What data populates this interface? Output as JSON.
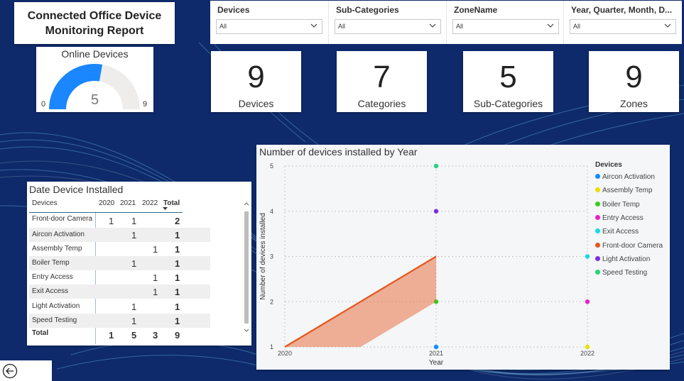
{
  "report": {
    "title": "Connected Office Device\nMonitoring Report"
  },
  "gauge": {
    "title": "Online Devices",
    "min": "0",
    "max": "9",
    "value": "5",
    "value_num": 5,
    "max_num": 9,
    "fill_color": "#1a86ff",
    "track_color": "#efedeb"
  },
  "filters": [
    {
      "label": "Devices",
      "value": "All"
    },
    {
      "label": "Sub-Categories",
      "value": "All"
    },
    {
      "label": "ZoneName",
      "value": "All"
    },
    {
      "label": "Year, Quarter, Month, D...",
      "value": "All"
    }
  ],
  "kpis": [
    {
      "value": "9",
      "label": "Devices"
    },
    {
      "value": "7",
      "label": "Categories"
    },
    {
      "value": "5",
      "label": "Sub-Categories"
    },
    {
      "value": "9",
      "label": "Zones"
    }
  ],
  "table": {
    "title": "Date Device Installed",
    "headers": [
      "Devices",
      "2020",
      "2021",
      "2022",
      "Total"
    ],
    "rows": [
      {
        "device": "Front-door Camera",
        "y2020": "1",
        "y2021": "1",
        "y2022": "",
        "total": "2"
      },
      {
        "device": "Aircon Activation",
        "y2020": "",
        "y2021": "1",
        "y2022": "",
        "total": "1"
      },
      {
        "device": "Assembly Temp",
        "y2020": "",
        "y2021": "",
        "y2022": "1",
        "total": "1"
      },
      {
        "device": "Boiler Temp",
        "y2020": "",
        "y2021": "1",
        "y2022": "",
        "total": "1"
      },
      {
        "device": "Entry Access",
        "y2020": "",
        "y2021": "",
        "y2022": "1",
        "total": "1"
      },
      {
        "device": "Exit Access",
        "y2020": "",
        "y2021": "",
        "y2022": "1",
        "total": "1"
      },
      {
        "device": "Light Activation",
        "y2020": "",
        "y2021": "1",
        "y2022": "",
        "total": "1"
      },
      {
        "device": "Speed Testing",
        "y2020": "",
        "y2021": "1",
        "y2022": "",
        "total": "1"
      }
    ],
    "total_row": {
      "device": "Total",
      "y2020": "1",
      "y2021": "5",
      "y2022": "3",
      "total": "9"
    }
  },
  "chart_data": {
    "type": "scatter",
    "title": "Number of devices installed by Year",
    "xlabel": "Year",
    "ylabel": "Number of devices installed",
    "x_ticks": [
      "2020",
      "2021",
      "2022"
    ],
    "y_ticks": [
      "1",
      "2",
      "3",
      "4",
      "5"
    ],
    "ylim": [
      1,
      5
    ],
    "grid": true,
    "legend_title": "Devices",
    "legend_position": "right",
    "series": [
      {
        "name": "Aircon Activation",
        "color": "#118dff",
        "points": [
          {
            "x": "2021",
            "y": 1
          }
        ]
      },
      {
        "name": "Assembly Temp",
        "color": "#e8e000",
        "points": [
          {
            "x": "2022",
            "y": 1
          }
        ]
      },
      {
        "name": "Boiler Temp",
        "color": "#34d11c",
        "points": [
          {
            "x": "2021",
            "y": 2
          }
        ]
      },
      {
        "name": "Entry Access",
        "color": "#e81fcb",
        "points": [
          {
            "x": "2022",
            "y": 2
          }
        ]
      },
      {
        "name": "Exit Access",
        "color": "#1ad7e6",
        "points": [
          {
            "x": "2022",
            "y": 3
          }
        ]
      },
      {
        "name": "Front-door Camera",
        "color": "#e6561c",
        "points": [
          {
            "x": "2020",
            "y": 1
          },
          {
            "x": "2021",
            "y": 3
          }
        ]
      },
      {
        "name": "Light Activation",
        "color": "#7b2ce0",
        "points": [
          {
            "x": "2021",
            "y": 4
          }
        ]
      },
      {
        "name": "Speed Testing",
        "color": "#2ad17e",
        "points": [
          {
            "x": "2021",
            "y": 5
          }
        ]
      }
    ]
  },
  "icons": {
    "back": "back-arrow-icon",
    "chevron": "chevron-down-icon",
    "sort": "sort-down-icon"
  }
}
